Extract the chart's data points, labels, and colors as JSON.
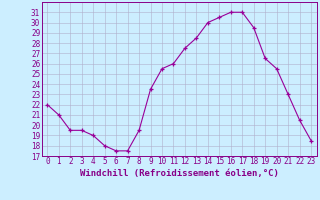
{
  "hours": [
    0,
    1,
    2,
    3,
    4,
    5,
    6,
    7,
    8,
    9,
    10,
    11,
    12,
    13,
    14,
    15,
    16,
    17,
    18,
    19,
    20,
    21,
    22,
    23
  ],
  "values": [
    22,
    21,
    19.5,
    19.5,
    19,
    18,
    17.5,
    17.5,
    19.5,
    23.5,
    25.5,
    26,
    27.5,
    28.5,
    30,
    30.5,
    31,
    31,
    29.5,
    26.5,
    25.5,
    23,
    20.5,
    18.5
  ],
  "line_color": "#990099",
  "marker": "+",
  "bg_color": "#cceeff",
  "grid_color": "#b0b0cc",
  "xlabel": "Windchill (Refroidissement éolien,°C)",
  "ylim_min": 17,
  "ylim_max": 32,
  "yticks": [
    17,
    18,
    19,
    20,
    21,
    22,
    23,
    24,
    25,
    26,
    27,
    28,
    29,
    30,
    31
  ],
  "xticks": [
    0,
    1,
    2,
    3,
    4,
    5,
    6,
    7,
    8,
    9,
    10,
    11,
    12,
    13,
    14,
    15,
    16,
    17,
    18,
    19,
    20,
    21,
    22,
    23
  ],
  "tick_color": "#880088",
  "label_fontsize": 6.5,
  "tick_fontsize": 5.5,
  "spine_color": "#880088"
}
